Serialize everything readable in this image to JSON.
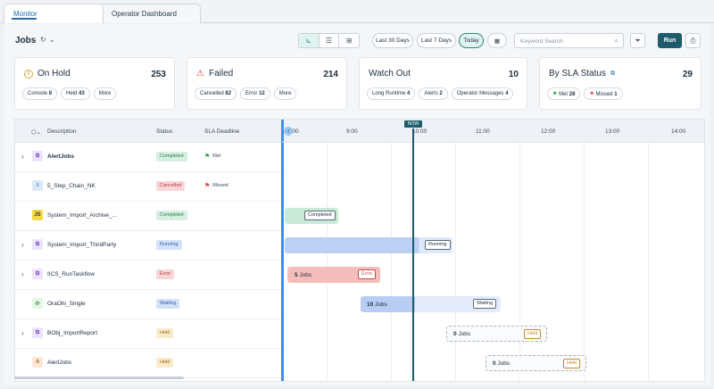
{
  "tabs": [
    "Monitor",
    "Operator Dashboard"
  ],
  "header": {
    "title": "Jobs",
    "refresh_icon": "refresh-icon",
    "ranges": [
      "Last 30 Days",
      "Last 7 Days",
      "Today"
    ],
    "search_placeholder": "Keyword Search",
    "run_label": "Run"
  },
  "cards": [
    {
      "title": "On Hold",
      "count": "253",
      "pills": [
        [
          "Console",
          "8"
        ],
        [
          "Held",
          "43"
        ],
        [
          "More",
          ""
        ]
      ]
    },
    {
      "title": "Failed",
      "count": "214",
      "pills": [
        [
          "Cancelled",
          "82"
        ],
        [
          "Error",
          "12"
        ],
        [
          "More",
          ""
        ]
      ]
    },
    {
      "title": "Watch Out",
      "count": "10",
      "pills": [
        [
          "Long Runtime",
          "4"
        ],
        [
          "Alerts",
          "2"
        ],
        [
          "Operator Messages",
          "4"
        ]
      ]
    },
    {
      "title": "By SLA Status",
      "count": "29",
      "pills": [
        [
          "Met",
          "28"
        ],
        [
          "Missed",
          "1"
        ]
      ]
    }
  ],
  "columns": {
    "description": "Description",
    "status": "Status",
    "sla": "SLA Deadline"
  },
  "ticks": [
    "8:00",
    "9:00",
    "10:00",
    "11:00",
    "12:00",
    "13:00",
    "14:00"
  ],
  "now_label": "NOW",
  "rows": [
    {
      "desc": "AlertJobs",
      "status": "Completed",
      "sla": "Met",
      "chev": true,
      "bold": true
    },
    {
      "desc": "5_Step_Chain_NK",
      "status": "Cancelled",
      "sla": "Missed",
      "chev": false
    },
    {
      "desc": "System_Import_Archive_...",
      "status": "Completed",
      "sla": "",
      "chev": false
    },
    {
      "desc": "System_Import_ThirdParty",
      "status": "Running",
      "sla": "",
      "chev": true
    },
    {
      "desc": "IICS_RunTaskflow",
      "status": "Error",
      "sla": "",
      "chev": true
    },
    {
      "desc": "OraOhi_Single",
      "status": "Waiting",
      "sla": "",
      "chev": false
    },
    {
      "desc": "BObj_ImportReport",
      "status": "Held",
      "sla": "",
      "chev": true
    },
    {
      "desc": "AlertJobs",
      "status": "Held",
      "sla": "",
      "chev": false
    }
  ],
  "bars": {
    "completed": "Completed",
    "running": "Running",
    "error_jobs": "5",
    "error_jobs_label": "Jobs",
    "error": "Error",
    "waiting_jobs": "10",
    "waiting_jobs_label": "Jobs",
    "waiting": "Waiting",
    "held1_jobs": "0",
    "held1_jobs_label": "Jobs",
    "held": "Held",
    "held2_jobs": "0",
    "held2_jobs_label": "Jobs"
  }
}
